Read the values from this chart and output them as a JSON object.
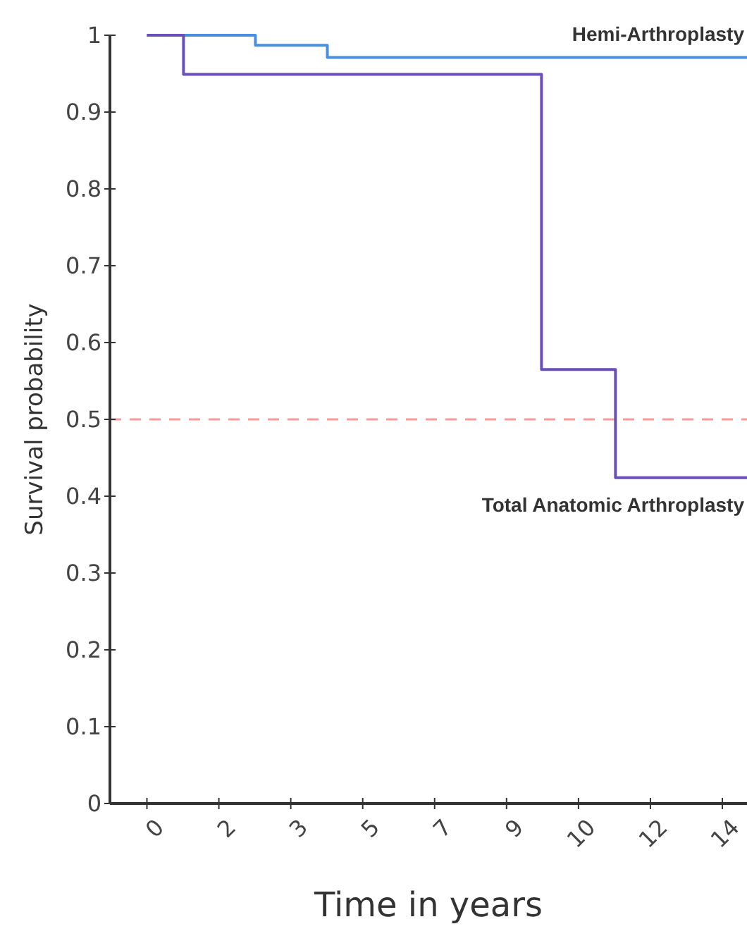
{
  "chart_data": {
    "type": "step",
    "xlabel": "Time in years",
    "ylabel": "Survival probability",
    "xlim": [
      -0.9,
      14.6
    ],
    "ylim": [
      0,
      1
    ],
    "xticks": [
      {
        "value": 0,
        "label": "0"
      },
      {
        "value": 1.75,
        "label": "2"
      },
      {
        "value": 3.5,
        "label": "3"
      },
      {
        "value": 5.25,
        "label": "5"
      },
      {
        "value": 7,
        "label": "7"
      },
      {
        "value": 8.75,
        "label": "9"
      },
      {
        "value": 10.5,
        "label": "10"
      },
      {
        "value": 12.25,
        "label": "12"
      },
      {
        "value": 14,
        "label": "14"
      }
    ],
    "yticks": [
      0,
      0.1,
      0.2,
      0.3,
      0.4,
      0.5,
      0.6,
      0.7,
      0.8,
      0.9,
      1
    ],
    "grid": false,
    "marker": "none",
    "line_style": "solid",
    "series": [
      {
        "name": "Hemi-Arthroplasty",
        "color": "#4a8fdc",
        "x": [
          0,
          2.64,
          4.39,
          14.6
        ],
        "values": [
          1,
          0.987,
          0.971,
          0.971
        ]
      },
      {
        "name": "Total Anatomic Arthroplasty",
        "color": "#6a4fb8",
        "x": [
          0,
          0.89,
          9.6,
          11.4,
          14.6
        ],
        "values": [
          1,
          0.949,
          0.565,
          0.424,
          0.424
        ]
      }
    ],
    "ref_lines": [
      {
        "axis": "y",
        "value": 0.5,
        "color": "#ff9999",
        "line_style": "dashed"
      }
    ]
  }
}
